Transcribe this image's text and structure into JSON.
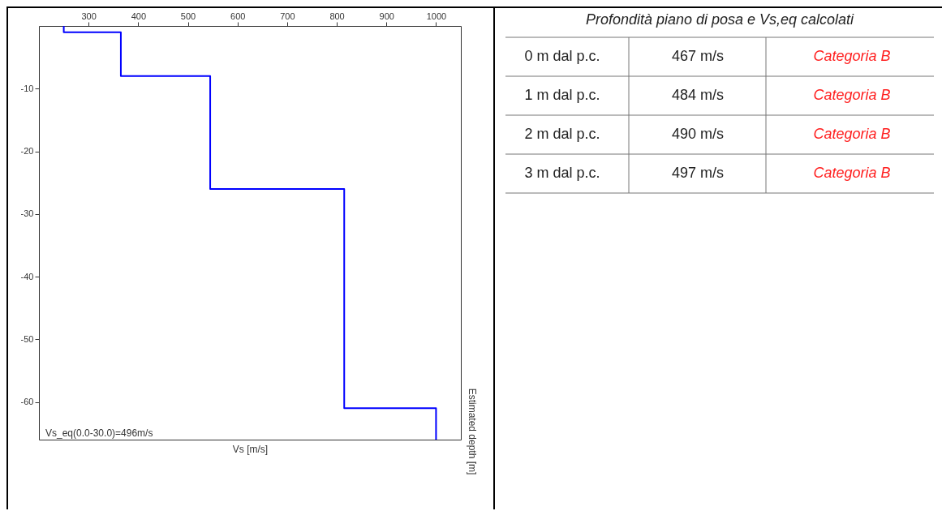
{
  "chart_data": [
    {
      "type": "line",
      "xlabel": "Vs [m/s]",
      "ylabel": "Estimated depth [m]",
      "x": [
        250,
        250,
        365,
        365,
        545,
        545,
        815,
        815,
        1000,
        1000
      ],
      "values": [
        0,
        -1,
        -1,
        -8,
        -8,
        -26,
        -26,
        -61,
        -61,
        -66
      ],
      "color": "#0000ff",
      "xlim": [
        200,
        1050
      ],
      "xticks": [
        300,
        400,
        500,
        600,
        700,
        800,
        900,
        1000
      ],
      "ylim": [
        -66,
        0
      ],
      "yticks": [
        -10,
        -20,
        -30,
        -40,
        -50,
        -60
      ],
      "annotations": [
        "Vs_eq(0.0-30.0)=496m/s"
      ]
    },
    {
      "type": "other",
      "title": "Profondità piano di posa e Vs,eq calcolati",
      "categories": [
        "0 m dal p.c.",
        "1 m dal p.c.",
        "2 m dal p.c.",
        "3 m dal p.c."
      ],
      "value_labels": [
        "467 m/s",
        "484 m/s",
        "490 m/s",
        "497 m/s"
      ],
      "annotations": [
        "Categoria B",
        "Categoria B",
        "Categoria B",
        "Categoria B"
      ]
    }
  ]
}
